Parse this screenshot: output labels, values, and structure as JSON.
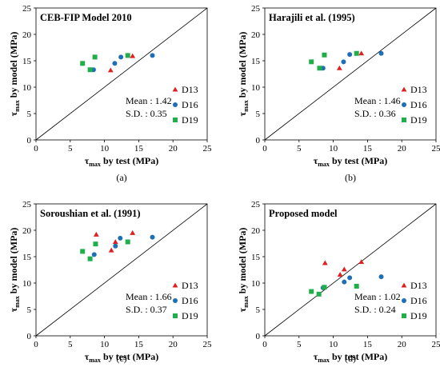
{
  "chart_data": [
    {
      "type": "scatter",
      "title": "CEB-FIP Model 2010",
      "caption": "(a)",
      "xlabel_main": "τ",
      "xlabel_sub": "max",
      "xlabel_rest": " by test (MPa)",
      "ylabel_main": "τ",
      "ylabel_sub": "max",
      "ylabel_rest": " by model (MPa)",
      "xlim": [
        0,
        25
      ],
      "ylim": [
        0,
        25
      ],
      "xticks": [
        "0",
        "5",
        "10",
        "15",
        "20",
        "25"
      ],
      "yticks": [
        "0",
        "5",
        "10",
        "15",
        "20",
        "25"
      ],
      "stats": [
        "Mean : 1.42",
        "S.D. : 0.35"
      ],
      "legend": [
        "D13",
        "D16",
        "D19"
      ],
      "series": [
        {
          "name": "D13",
          "marker": "triangle",
          "color": "#e02020",
          "points": [
            [
              10.9,
              13.2
            ],
            [
              14.1,
              15.9
            ]
          ]
        },
        {
          "name": "D16",
          "marker": "circle",
          "color": "#1f6fb5",
          "points": [
            [
              8.4,
              13.3
            ],
            [
              11.5,
              14.5
            ],
            [
              12.4,
              15.7
            ],
            [
              17.0,
              16.0
            ]
          ]
        },
        {
          "name": "D19",
          "marker": "square",
          "color": "#1fae4a",
          "points": [
            [
              6.8,
              14.5
            ],
            [
              7.9,
              13.3
            ],
            [
              8.6,
              15.7
            ],
            [
              13.4,
              16.0
            ]
          ]
        }
      ]
    },
    {
      "type": "scatter",
      "title": "Harajili et al. (1995)",
      "caption": "(b)",
      "xlabel_main": "τ",
      "xlabel_sub": "max",
      "xlabel_rest": " by test (MPa)",
      "ylabel_main": "τ",
      "ylabel_sub": "max",
      "ylabel_rest": " by model (MPa)",
      "xlim": [
        0,
        25
      ],
      "ylim": [
        0,
        25
      ],
      "xticks": [
        "0",
        "5",
        "10",
        "15",
        "20",
        "25"
      ],
      "yticks": [
        "0",
        "5",
        "10",
        "15",
        "20",
        "25"
      ],
      "stats": [
        "Mean : 1.46",
        "S.D. : 0.36"
      ],
      "legend": [
        "D13",
        "D16",
        "D19"
      ],
      "series": [
        {
          "name": "D13",
          "marker": "triangle",
          "color": "#e02020",
          "points": [
            [
              10.9,
              13.6
            ],
            [
              14.1,
              16.4
            ]
          ]
        },
        {
          "name": "D16",
          "marker": "circle",
          "color": "#1f6fb5",
          "points": [
            [
              8.5,
              13.6
            ],
            [
              11.5,
              14.8
            ],
            [
              12.4,
              16.2
            ],
            [
              17.0,
              16.4
            ]
          ]
        },
        {
          "name": "D19",
          "marker": "square",
          "color": "#1fae4a",
          "points": [
            [
              6.8,
              14.8
            ],
            [
              8.0,
              13.6
            ],
            [
              8.7,
              16.1
            ],
            [
              13.4,
              16.4
            ]
          ]
        }
      ]
    },
    {
      "type": "scatter",
      "title": "Soroushian et al. (1991)",
      "caption": "(c)",
      "xlabel_main": "τ",
      "xlabel_sub": "max",
      "xlabel_rest": " by test (MPa)",
      "ylabel_main": "τ",
      "ylabel_sub": "max",
      "ylabel_rest": " by model (MPa)",
      "xlim": [
        0,
        25
      ],
      "ylim": [
        0,
        25
      ],
      "xticks": [
        "0",
        "5",
        "10",
        "15",
        "20",
        "25"
      ],
      "yticks": [
        "0",
        "5",
        "10",
        "15",
        "20",
        "25"
      ],
      "stats": [
        "Mean : 1.66",
        "S.D. : 0.37"
      ],
      "legend": [
        "D13",
        "D16",
        "D19"
      ],
      "series": [
        {
          "name": "D13",
          "marker": "triangle",
          "color": "#e02020",
          "points": [
            [
              8.8,
              19.2
            ],
            [
              11.0,
              16.2
            ],
            [
              11.6,
              17.8
            ],
            [
              14.1,
              19.5
            ]
          ]
        },
        {
          "name": "D16",
          "marker": "circle",
          "color": "#1f6fb5",
          "points": [
            [
              8.5,
              15.4
            ],
            [
              11.6,
              17.0
            ],
            [
              12.3,
              18.5
            ],
            [
              17.0,
              18.7
            ]
          ]
        },
        {
          "name": "D19",
          "marker": "square",
          "color": "#1fae4a",
          "points": [
            [
              6.8,
              16.0
            ],
            [
              7.9,
              14.6
            ],
            [
              8.7,
              17.4
            ],
            [
              13.4,
              17.8
            ]
          ]
        }
      ]
    },
    {
      "type": "scatter",
      "title": "Proposed model",
      "caption": "(d)",
      "xlabel_main": "τ",
      "xlabel_sub": "max",
      "xlabel_rest": " by test (MPa)",
      "ylabel_main": "τ",
      "ylabel_sub": "max",
      "ylabel_rest": " by model (MPa)",
      "xlim": [
        0,
        25
      ],
      "ylim": [
        0,
        25
      ],
      "xticks": [
        "0",
        "5",
        "10",
        "15",
        "20",
        "25"
      ],
      "yticks": [
        "0",
        "5",
        "10",
        "15",
        "20",
        "25"
      ],
      "stats": [
        "Mean : 1.02",
        "S.D. : 0.24"
      ],
      "legend": [
        "D13",
        "D16",
        "D19"
      ],
      "series": [
        {
          "name": "D13",
          "marker": "triangle",
          "color": "#e02020",
          "points": [
            [
              8.8,
              13.8
            ],
            [
              11.0,
              11.6
            ],
            [
              11.6,
              12.6
            ],
            [
              14.1,
              14.0
            ]
          ]
        },
        {
          "name": "D16",
          "marker": "circle",
          "color": "#1f6fb5",
          "points": [
            [
              8.5,
              9.1
            ],
            [
              11.6,
              10.2
            ],
            [
              12.4,
              11.0
            ],
            [
              17.0,
              11.2
            ]
          ]
        },
        {
          "name": "D19",
          "marker": "square",
          "color": "#1fae4a",
          "points": [
            [
              6.8,
              8.4
            ],
            [
              7.9,
              7.9
            ],
            [
              8.7,
              9.2
            ],
            [
              13.4,
              9.4
            ]
          ]
        }
      ]
    }
  ]
}
